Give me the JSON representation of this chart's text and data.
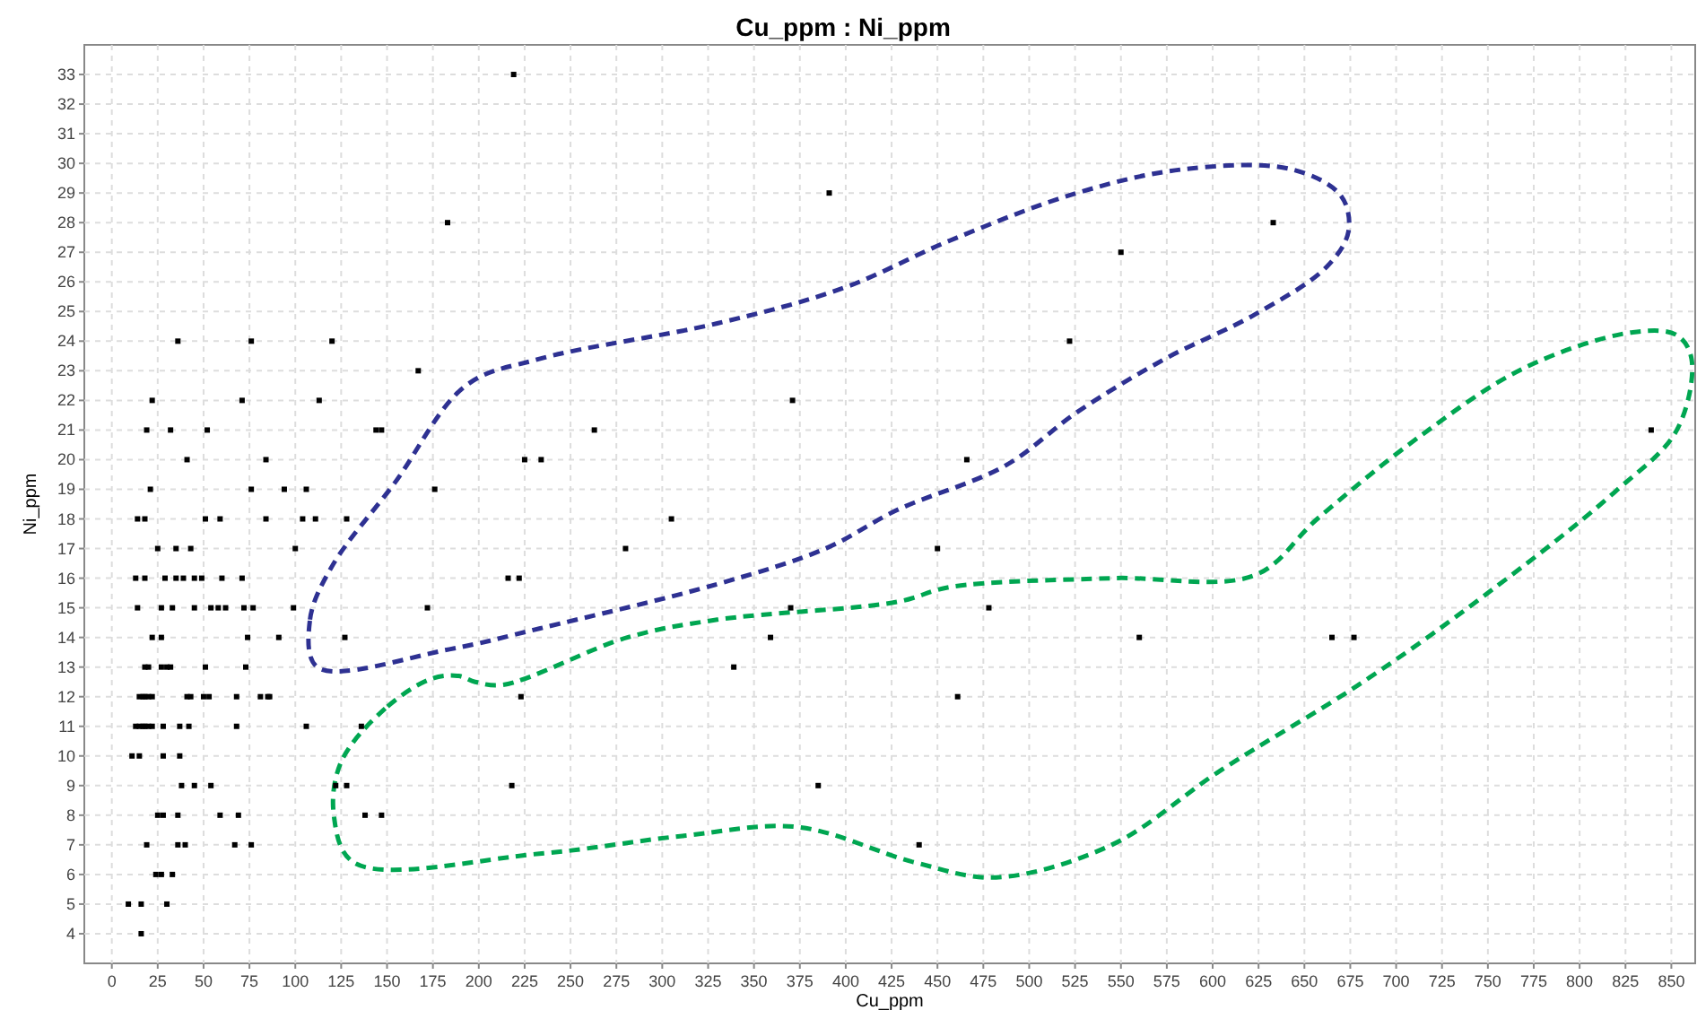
{
  "chart_data": {
    "type": "scatter",
    "title": "Cu_ppm : Ni_ppm",
    "xlabel": "Cu_ppm",
    "ylabel": "Ni_ppm",
    "xlim": [
      -15,
      863
    ],
    "ylim": [
      3,
      34
    ],
    "xticks": [
      0,
      25,
      50,
      75,
      100,
      125,
      150,
      175,
      200,
      225,
      250,
      275,
      300,
      325,
      350,
      375,
      400,
      425,
      450,
      475,
      500,
      525,
      550,
      575,
      600,
      625,
      650,
      675,
      700,
      725,
      750,
      775,
      800,
      825,
      850
    ],
    "yticks": [
      4,
      5,
      6,
      7,
      8,
      9,
      10,
      11,
      12,
      13,
      14,
      15,
      16,
      17,
      18,
      19,
      20,
      21,
      22,
      23,
      24,
      25,
      26,
      27,
      28,
      29,
      30,
      31,
      32,
      33
    ],
    "grid": true,
    "marker": "square",
    "series": [
      {
        "color": "#000000",
        "x": [
          219,
          183,
          391,
          633,
          550,
          167,
          36,
          76,
          120,
          522,
          22,
          71,
          113,
          371,
          19,
          32,
          52,
          144,
          147,
          263,
          839,
          41,
          84,
          225,
          234,
          466,
          21,
          76,
          94,
          106,
          176,
          14,
          18,
          51,
          59,
          84,
          104,
          111,
          128,
          305,
          25,
          35,
          43,
          100,
          280,
          450,
          13,
          18,
          29,
          35,
          39,
          45,
          49,
          60,
          71,
          216,
          222,
          14,
          27,
          33,
          45,
          54,
          58,
          62,
          72,
          77,
          99,
          172,
          370,
          478,
          22,
          27,
          74,
          91,
          127,
          359,
          560,
          665,
          677,
          18,
          20,
          27,
          30,
          32,
          51,
          73,
          339,
          15,
          17,
          18,
          20,
          22,
          41,
          43,
          50,
          53,
          68,
          81,
          85,
          86,
          223,
          461,
          13,
          15,
          17,
          18,
          20,
          22,
          28,
          37,
          42,
          68,
          106,
          136,
          11,
          15,
          28,
          37,
          38,
          45,
          54,
          122,
          128,
          218,
          385,
          25,
          28,
          36,
          59,
          69,
          138,
          147,
          19,
          36,
          40,
          67,
          76,
          440,
          24,
          27,
          33,
          9,
          16,
          30,
          16
        ],
        "values": [
          33,
          28,
          29,
          28,
          27,
          23,
          24,
          24,
          24,
          24,
          22,
          22,
          22,
          22,
          21,
          21,
          21,
          21,
          21,
          21,
          21,
          20,
          20,
          20,
          20,
          20,
          19,
          19,
          19,
          19,
          19,
          18,
          18,
          18,
          18,
          18,
          18,
          18,
          18,
          18,
          17,
          17,
          17,
          17,
          17,
          17,
          16,
          16,
          16,
          16,
          16,
          16,
          16,
          16,
          16,
          16,
          16,
          15,
          15,
          15,
          15,
          15,
          15,
          15,
          15,
          15,
          15,
          15,
          15,
          15,
          14,
          14,
          14,
          14,
          14,
          14,
          14,
          14,
          14,
          13,
          13,
          13,
          13,
          13,
          13,
          13,
          13,
          12,
          12,
          12,
          12,
          12,
          12,
          12,
          12,
          12,
          12,
          12,
          12,
          12,
          12,
          12,
          11,
          11,
          11,
          11,
          11,
          11,
          11,
          11,
          11,
          11,
          11,
          11,
          10,
          10,
          10,
          10,
          9,
          9,
          9,
          9,
          9,
          9,
          9,
          8,
          8,
          8,
          8,
          8,
          8,
          8,
          7,
          7,
          7,
          7,
          7,
          7,
          6,
          6,
          6,
          5,
          5,
          5,
          4
        ]
      }
    ]
  }
}
